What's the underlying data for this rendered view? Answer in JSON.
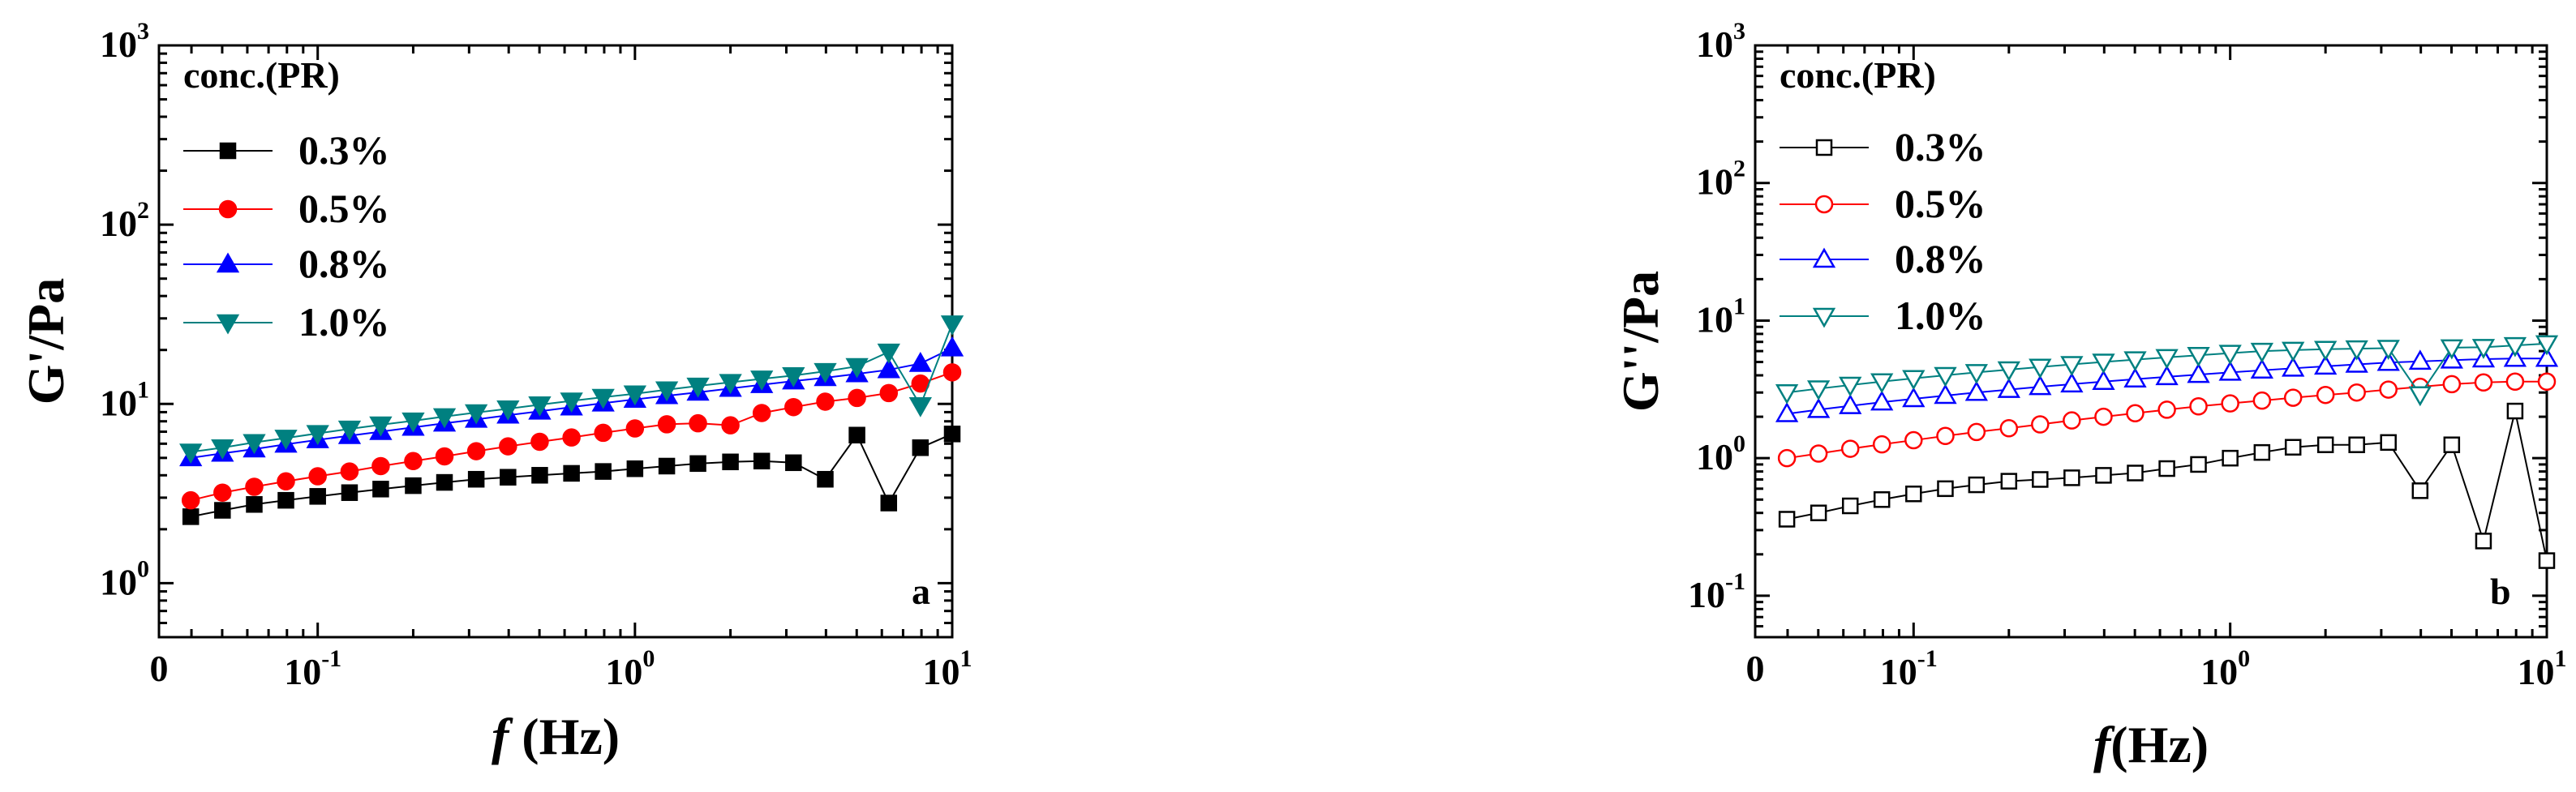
{
  "chart_data": [
    {
      "type": "line",
      "panel_letter": "a",
      "ylabel_main": "G'",
      "ylabel_unit": "/Pa",
      "xlabel_italic": "f",
      "xlabel_unit": " (Hz)",
      "x_scale": "log",
      "y_scale": "log",
      "xlim": [
        0.0316,
        10
      ],
      "ylim": [
        0.5,
        1000
      ],
      "grid": false,
      "legend_title": "conc.(PR)",
      "legend_position": "top-left",
      "x_ticks": [
        {
          "value": 0.1,
          "base": "10",
          "exp": "-1"
        },
        {
          "value": 1,
          "base": "10",
          "exp": "0"
        },
        {
          "value": 10,
          "base": "10",
          "exp": "1"
        }
      ],
      "x_zero_label": "0",
      "y_ticks": [
        {
          "value": 1,
          "base": "10",
          "exp": "0"
        },
        {
          "value": 10,
          "base": "10",
          "exp": "1"
        },
        {
          "value": 100,
          "base": "10",
          "exp": "2"
        },
        {
          "value": 1000,
          "base": "10",
          "exp": "3"
        }
      ],
      "x": [
        0.0398,
        0.0501,
        0.0631,
        0.0794,
        0.1,
        0.126,
        0.158,
        0.2,
        0.251,
        0.316,
        0.398,
        0.501,
        0.631,
        0.794,
        1.0,
        1.26,
        1.58,
        2.0,
        2.51,
        3.16,
        3.98,
        5.01,
        6.31,
        7.94,
        10.0
      ],
      "series": [
        {
          "name": "0.3%",
          "color": "#000000",
          "marker": "square",
          "filled": true,
          "values": [
            2.35,
            2.55,
            2.75,
            2.9,
            3.05,
            3.2,
            3.35,
            3.5,
            3.65,
            3.8,
            3.9,
            4.0,
            4.1,
            4.2,
            4.35,
            4.5,
            4.65,
            4.75,
            4.8,
            4.7,
            3.8,
            6.7,
            2.8,
            5.7,
            6.8
          ]
        },
        {
          "name": "0.5%",
          "color": "#ff0000",
          "marker": "circle",
          "filled": true,
          "values": [
            2.9,
            3.2,
            3.45,
            3.7,
            3.95,
            4.2,
            4.5,
            4.8,
            5.1,
            5.45,
            5.8,
            6.15,
            6.5,
            6.9,
            7.3,
            7.7,
            7.8,
            7.6,
            8.9,
            9.6,
            10.3,
            10.8,
            11.5,
            13.0,
            15.0
          ]
        },
        {
          "name": "0.8%",
          "color": "#0000ff",
          "marker": "triangle-up",
          "filled": true,
          "values": [
            5.0,
            5.3,
            5.6,
            5.95,
            6.3,
            6.65,
            7.0,
            7.4,
            7.8,
            8.2,
            8.65,
            9.1,
            9.6,
            10.1,
            10.6,
            11.1,
            11.6,
            12.2,
            12.8,
            13.4,
            14.0,
            14.7,
            15.5,
            16.8,
            20.5
          ]
        },
        {
          "name": "1.0%",
          "color": "#008080",
          "marker": "triangle-down",
          "filled": true,
          "values": [
            5.4,
            5.7,
            6.1,
            6.45,
            6.85,
            7.25,
            7.65,
            8.05,
            8.5,
            8.95,
            9.4,
            9.9,
            10.4,
            10.9,
            11.4,
            12.0,
            12.6,
            13.2,
            13.8,
            14.4,
            15.2,
            16.2,
            19.5,
            9.8,
            28.0
          ]
        }
      ]
    },
    {
      "type": "line",
      "panel_letter": "b",
      "ylabel_main": "G''",
      "ylabel_unit": "/Pa",
      "xlabel_italic": "f",
      "xlabel_unit": "(Hz)",
      "x_scale": "log",
      "y_scale": "log",
      "xlim": [
        0.0316,
        10
      ],
      "ylim": [
        0.05,
        1000
      ],
      "grid": false,
      "legend_title": "conc.(PR)",
      "legend_position": "top-left",
      "x_ticks": [
        {
          "value": 0.1,
          "base": "10",
          "exp": "-1"
        },
        {
          "value": 1,
          "base": "10",
          "exp": "0"
        },
        {
          "value": 10,
          "base": "10",
          "exp": "1"
        }
      ],
      "x_zero_label": "0",
      "y_ticks": [
        {
          "value": 0.1,
          "base": "10",
          "exp": "-1"
        },
        {
          "value": 1,
          "base": "10",
          "exp": "0"
        },
        {
          "value": 10,
          "base": "10",
          "exp": "1"
        },
        {
          "value": 100,
          "base": "10",
          "exp": "2"
        },
        {
          "value": 1000,
          "base": "10",
          "exp": "3"
        }
      ],
      "x": [
        0.0398,
        0.0501,
        0.0631,
        0.0794,
        0.1,
        0.126,
        0.158,
        0.2,
        0.251,
        0.316,
        0.398,
        0.501,
        0.631,
        0.794,
        1.0,
        1.26,
        1.58,
        2.0,
        2.51,
        3.16,
        3.98,
        5.01,
        6.31,
        7.94,
        10.0
      ],
      "series": [
        {
          "name": "0.3%",
          "color": "#000000",
          "marker": "square",
          "filled": false,
          "values": [
            0.36,
            0.4,
            0.45,
            0.5,
            0.55,
            0.6,
            0.64,
            0.68,
            0.7,
            0.72,
            0.75,
            0.78,
            0.84,
            0.9,
            1.0,
            1.1,
            1.2,
            1.25,
            1.25,
            1.3,
            0.58,
            1.25,
            0.25,
            2.2,
            0.18
          ]
        },
        {
          "name": "0.5%",
          "color": "#ff0000",
          "marker": "circle",
          "filled": false,
          "values": [
            1.0,
            1.08,
            1.17,
            1.26,
            1.35,
            1.45,
            1.55,
            1.65,
            1.76,
            1.88,
            2.0,
            2.12,
            2.25,
            2.38,
            2.5,
            2.62,
            2.75,
            2.88,
            3.0,
            3.15,
            3.3,
            3.45,
            3.55,
            3.6,
            3.6
          ]
        },
        {
          "name": "0.8%",
          "color": "#0000ff",
          "marker": "triangle-up",
          "filled": false,
          "values": [
            2.1,
            2.25,
            2.4,
            2.55,
            2.7,
            2.85,
            3.0,
            3.15,
            3.3,
            3.45,
            3.6,
            3.75,
            3.9,
            4.05,
            4.2,
            4.35,
            4.5,
            4.65,
            4.8,
            4.95,
            5.05,
            5.15,
            5.25,
            5.3,
            5.3
          ]
        },
        {
          "name": "1.0%",
          "color": "#008080",
          "marker": "triangle-down",
          "filled": false,
          "values": [
            3.0,
            3.2,
            3.4,
            3.6,
            3.8,
            4.0,
            4.2,
            4.4,
            4.6,
            4.8,
            5.0,
            5.2,
            5.4,
            5.6,
            5.8,
            6.0,
            6.1,
            6.2,
            6.25,
            6.3,
            2.9,
            6.35,
            6.4,
            6.6,
            6.8
          ]
        }
      ]
    }
  ]
}
